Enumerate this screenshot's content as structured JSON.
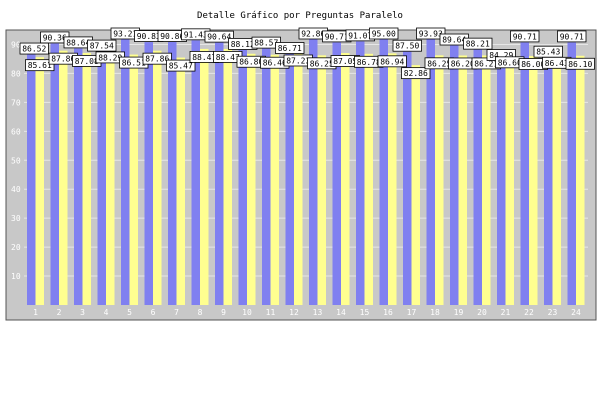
{
  "chart_data": {
    "type": "bar",
    "title": "Detalle Gráfico por Preguntas Paralelo",
    "xlabel": "",
    "ylabel": "",
    "categories": [
      "1",
      "2",
      "3",
      "4",
      "5",
      "6",
      "7",
      "8",
      "9",
      "10",
      "11",
      "12",
      "13",
      "14",
      "15",
      "16",
      "17",
      "18",
      "19",
      "20",
      "21",
      "22",
      "23",
      "24"
    ],
    "series": [
      {
        "values": [
          86.52,
          90.36,
          88.64,
          87.54,
          93.21,
          90.83,
          90.86,
          91.43,
          90.64,
          88.12,
          88.57,
          86.71,
          92.86,
          90.71,
          91.07,
          95.0,
          87.5,
          93.93,
          89.64,
          88.21,
          84.29,
          90.71,
          85.43,
          90.71
        ]
      },
      {
        "values": [
          85.61,
          87.86,
          87.08,
          88.29,
          86.51,
          87.86,
          85.47,
          88.47,
          88.47,
          86.8,
          86.46,
          87.23,
          86.25,
          87.05,
          86.78,
          86.94,
          82.86,
          86.25,
          86.2,
          86.21,
          86.6,
          86.0,
          86.43,
          86.1
        ]
      }
    ],
    "ylim": [
      0,
      95
    ],
    "yticks": [
      10,
      20,
      30,
      40,
      50,
      60,
      70,
      80,
      90
    ],
    "grid": true,
    "legend": "none",
    "colors": {
      "series1": "#8080f0",
      "series2": "#ffff90",
      "plot_bg": "#c8c8c8",
      "grid": "#e6e6e6",
      "tick_text": "#ffffff",
      "label_bg": "#ffffff",
      "label_border": "#000000"
    }
  }
}
